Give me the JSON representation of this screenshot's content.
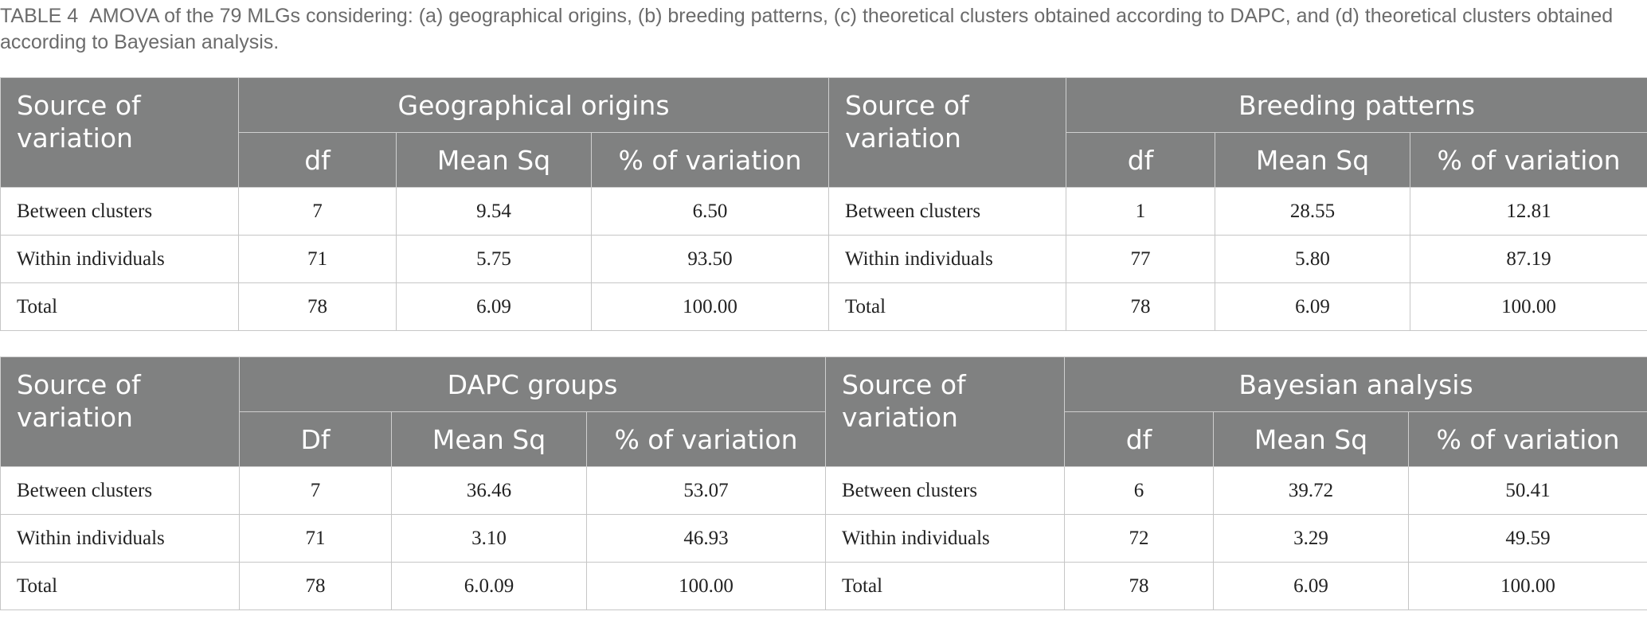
{
  "caption": {
    "label": "TABLE 4",
    "text": "AMOVA of the 79 MLGs considering: (a) geographical origins, (b) breeding patterns, (c) theoretical clusters obtained according to DAPC, and (d) theoretical clusters obtained according to Bayesian analysis."
  },
  "tables": [
    {
      "left": {
        "source_header": "Source of variation",
        "group_title": "Geographical origins",
        "col_df": "df",
        "col_mean": "Mean Sq",
        "col_pct": "% of variation",
        "rows": [
          {
            "label": "Between clusters",
            "df": "7",
            "mean": "9.54",
            "pct": "6.50"
          },
          {
            "label": "Within individuals",
            "df": "71",
            "mean": "5.75",
            "pct": "93.50"
          },
          {
            "label": "Total",
            "df": "78",
            "mean": "6.09",
            "pct": "100.00"
          }
        ]
      },
      "right": {
        "source_header": "Source of variation",
        "group_title": "Breeding patterns",
        "col_df": "df",
        "col_mean": "Mean Sq",
        "col_pct": "% of variation",
        "rows": [
          {
            "label": "Between clusters",
            "df": "1",
            "mean": "28.55",
            "pct": "12.81"
          },
          {
            "label": "Within individuals",
            "df": "77",
            "mean": "5.80",
            "pct": "87.19"
          },
          {
            "label": "Total",
            "df": "78",
            "mean": "6.09",
            "pct": "100.00"
          }
        ]
      }
    },
    {
      "left": {
        "source_header": "Source of variation",
        "group_title": "DAPC groups",
        "col_df": "Df",
        "col_mean": "Mean Sq",
        "col_pct": "% of variation",
        "rows": [
          {
            "label": "Between clusters",
            "df": "7",
            "mean": "36.46",
            "pct": "53.07"
          },
          {
            "label": "Within individuals",
            "df": "71",
            "mean": "3.10",
            "pct": "46.93"
          },
          {
            "label": "Total",
            "df": "78",
            "mean": "6.0.09",
            "pct": "100.00"
          }
        ]
      },
      "right": {
        "source_header": "Source of variation",
        "group_title": "Bayesian analysis",
        "col_df": "df",
        "col_mean": "Mean Sq",
        "col_pct": "% of variation",
        "rows": [
          {
            "label": "Between clusters",
            "df": "6",
            "mean": "39.72",
            "pct": "50.41"
          },
          {
            "label": "Within individuals",
            "df": "72",
            "mean": "3.29",
            "pct": "49.59"
          },
          {
            "label": "Total",
            "df": "78",
            "mean": "6.09",
            "pct": "100.00"
          }
        ]
      }
    }
  ]
}
